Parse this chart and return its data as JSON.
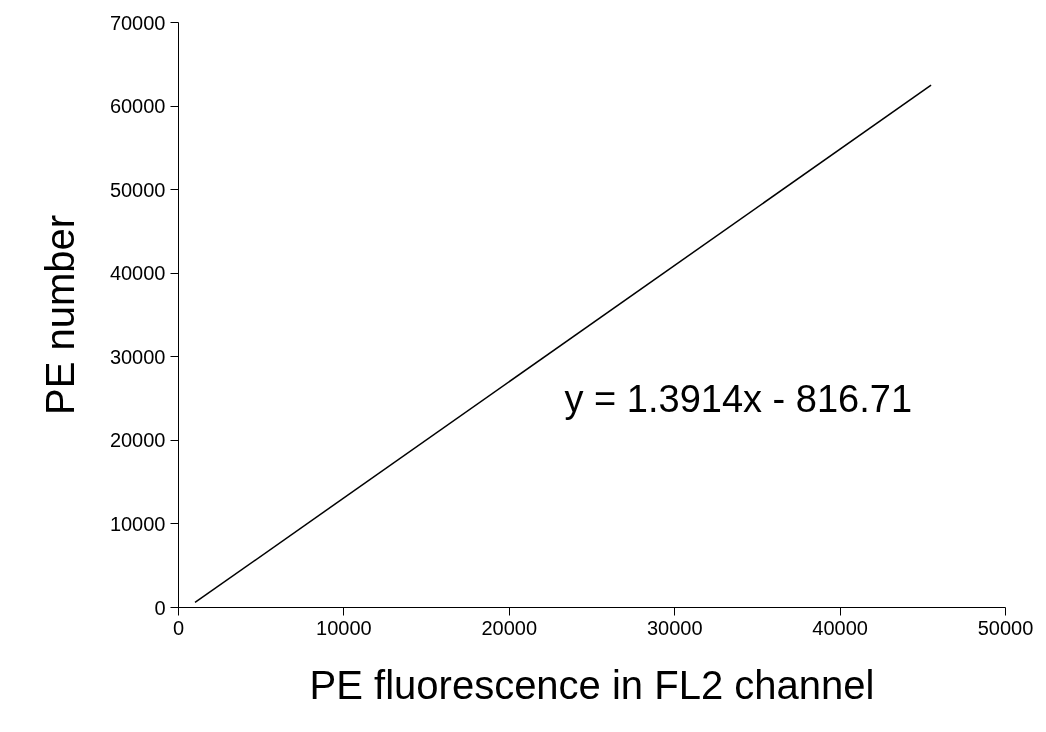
{
  "chart_data": {
    "type": "line",
    "xlabel": "PE fluorescence in FL2 channel",
    "ylabel": "PE number",
    "series": [
      {
        "color": "#000000",
        "x": [
          1000,
          45500
        ],
        "values": [
          600,
          62500
        ]
      }
    ],
    "xlim": [
      0,
      50000
    ],
    "xticks": [
      0,
      10000,
      20000,
      30000,
      40000,
      50000
    ],
    "ylim": [
      0,
      70000
    ],
    "yticks": [
      0,
      10000,
      20000,
      30000,
      40000,
      50000,
      60000,
      70000
    ],
    "grid": false,
    "marker": "none",
    "line_style": "solid",
    "annotations": [
      "y = 1.3914x - 816.71"
    ]
  }
}
